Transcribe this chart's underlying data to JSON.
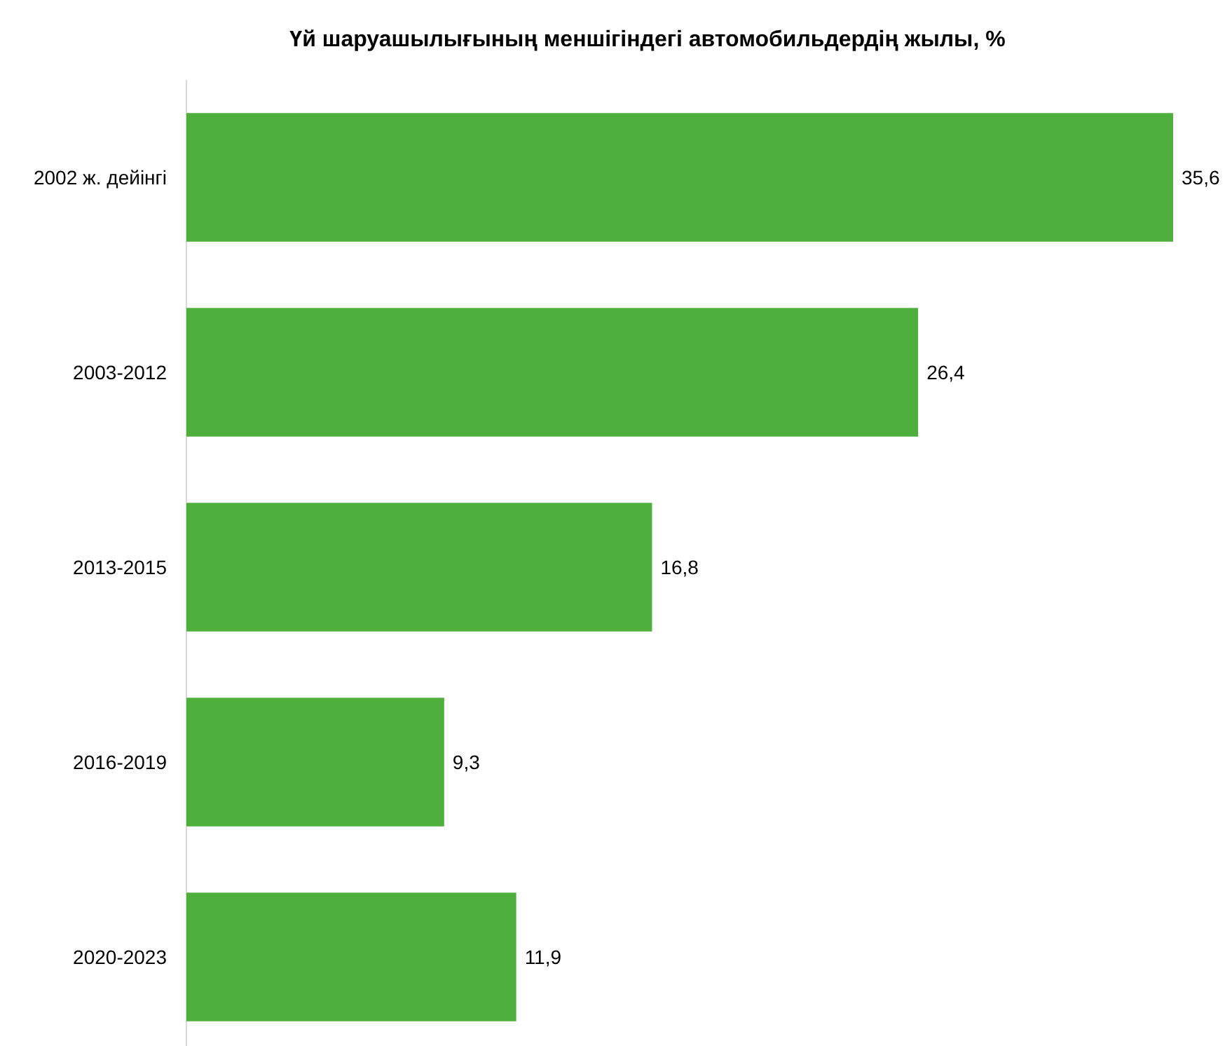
{
  "chart_data": {
    "type": "bar",
    "orientation": "horizontal",
    "title": "Үй шаруашылығының меншігіндегі автомобильдердің жылы, %",
    "categories": [
      "2002 ж. дейінгі",
      "2003-2012",
      "2013-2015",
      "2016-2019",
      "2020-2023"
    ],
    "values": [
      35.6,
      26.4,
      16.8,
      9.3,
      11.9
    ],
    "value_labels": [
      "35,6",
      "26,4",
      "16,8",
      "9,3",
      "11,9"
    ],
    "color": "#4eaf3c"
  }
}
